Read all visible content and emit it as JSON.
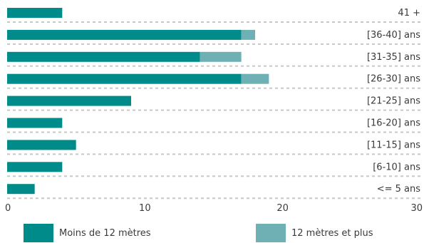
{
  "chart_data": {
    "type": "bar",
    "orientation": "horizontal",
    "stacked": true,
    "categories": [
      "41 +",
      "[36-40] ans",
      "[31-35] ans",
      "[26-30] ans",
      "[21-25] ans",
      "[16-20] ans",
      "[11-15] ans",
      "[6-10] ans",
      "<= 5 ans"
    ],
    "series": [
      {
        "name": "Moins de 12 mètres",
        "color": "#008b8b",
        "values": [
          4,
          17,
          14,
          17,
          9,
          4,
          5,
          4,
          2
        ]
      },
      {
        "name": "12 mètres et plus",
        "color": "#6fb0b5",
        "values": [
          0,
          1,
          3,
          2,
          0,
          0,
          0,
          0,
          0
        ]
      }
    ],
    "xlim": [
      0,
      30
    ],
    "xticks": [
      "0",
      "10",
      "20",
      "30"
    ],
    "grid": "dashed horizontal separators",
    "legend": "bottom",
    "title": "",
    "xlabel": "",
    "ylabel": ""
  }
}
